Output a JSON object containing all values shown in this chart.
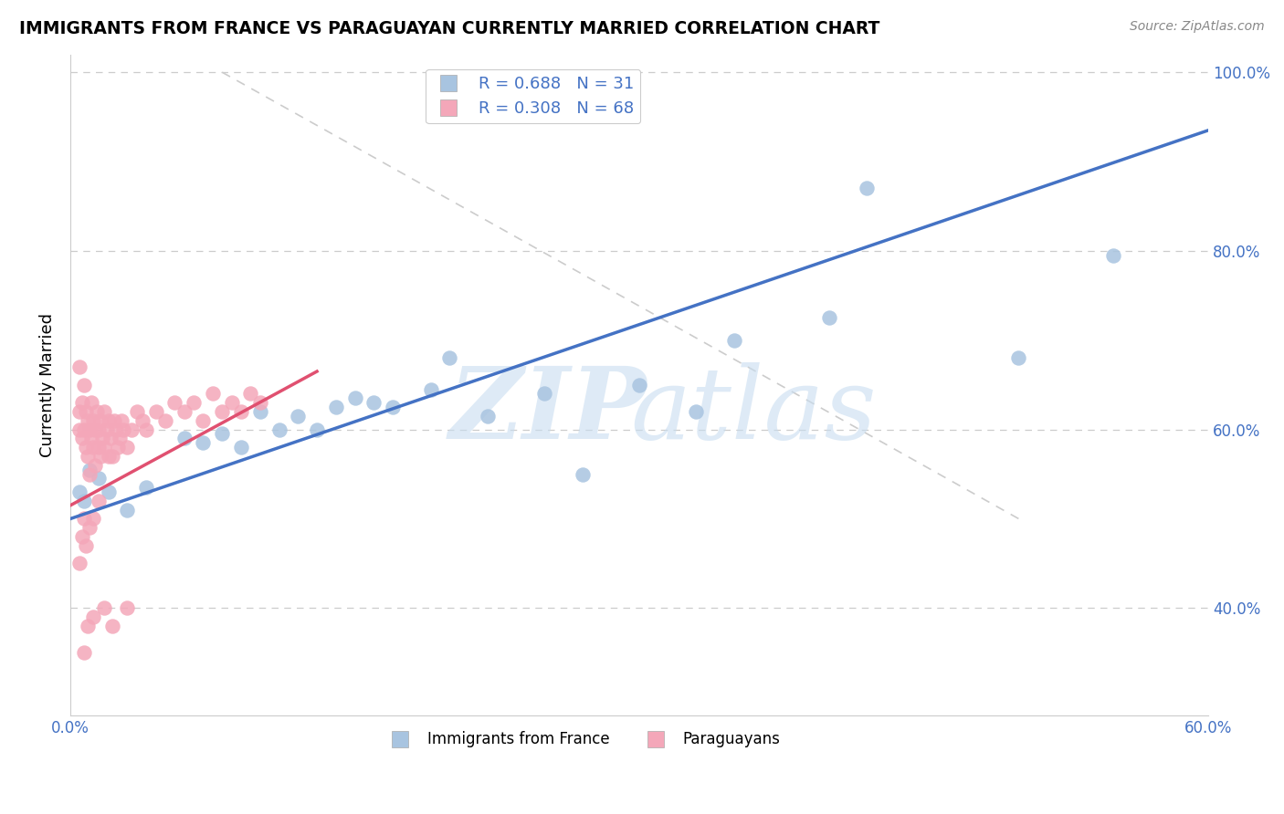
{
  "title": "IMMIGRANTS FROM FRANCE VS PARAGUAYAN CURRENTLY MARRIED CORRELATION CHART",
  "source": "Source: ZipAtlas.com",
  "ylabel": "Currently Married",
  "xlim": [
    0.0,
    0.6
  ],
  "ylim": [
    0.28,
    1.02
  ],
  "color_blue": "#a8c4e0",
  "color_pink": "#f4a7b9",
  "color_blue_line": "#4472c4",
  "color_pink_line": "#e05070",
  "color_legend_text": "#4472c4",
  "legend_r1": "R = 0.688",
  "legend_n1": "N = 31",
  "legend_r2": "R = 0.308",
  "legend_n2": "N = 68",
  "blue_line_x": [
    0.0,
    0.6
  ],
  "blue_line_y": [
    0.5,
    0.935
  ],
  "pink_line_x": [
    0.0,
    0.13
  ],
  "pink_line_y": [
    0.515,
    0.665
  ],
  "diag_line_x": [
    0.08,
    0.5
  ],
  "diag_line_y": [
    1.0,
    0.5
  ],
  "blue_x": [
    0.005,
    0.007,
    0.01,
    0.015,
    0.02,
    0.03,
    0.04,
    0.06,
    0.07,
    0.08,
    0.09,
    0.1,
    0.11,
    0.12,
    0.13,
    0.14,
    0.15,
    0.16,
    0.17,
    0.19,
    0.2,
    0.22,
    0.25,
    0.27,
    0.3,
    0.33,
    0.35,
    0.4,
    0.42,
    0.5,
    0.55
  ],
  "blue_y": [
    0.53,
    0.52,
    0.555,
    0.545,
    0.53,
    0.51,
    0.535,
    0.59,
    0.585,
    0.595,
    0.58,
    0.62,
    0.6,
    0.615,
    0.6,
    0.625,
    0.635,
    0.63,
    0.625,
    0.645,
    0.68,
    0.615,
    0.64,
    0.55,
    0.65,
    0.62,
    0.7,
    0.725,
    0.87,
    0.68,
    0.795
  ],
  "pink_x": [
    0.005,
    0.005,
    0.005,
    0.006,
    0.006,
    0.007,
    0.007,
    0.008,
    0.008,
    0.009,
    0.009,
    0.01,
    0.01,
    0.011,
    0.011,
    0.012,
    0.012,
    0.013,
    0.013,
    0.014,
    0.015,
    0.015,
    0.016,
    0.016,
    0.017,
    0.018,
    0.018,
    0.019,
    0.02,
    0.02,
    0.021,
    0.022,
    0.023,
    0.024,
    0.025,
    0.026,
    0.027,
    0.028,
    0.03,
    0.032,
    0.035,
    0.038,
    0.04,
    0.045,
    0.05,
    0.055,
    0.06,
    0.065,
    0.07,
    0.075,
    0.08,
    0.085,
    0.09,
    0.095,
    0.1,
    0.005,
    0.006,
    0.007,
    0.008,
    0.01,
    0.012,
    0.015,
    0.007,
    0.009,
    0.012,
    0.018,
    0.022,
    0.03
  ],
  "pink_y": [
    0.62,
    0.67,
    0.6,
    0.59,
    0.63,
    0.6,
    0.65,
    0.62,
    0.58,
    0.57,
    0.61,
    0.6,
    0.55,
    0.59,
    0.63,
    0.58,
    0.61,
    0.6,
    0.56,
    0.62,
    0.6,
    0.58,
    0.61,
    0.57,
    0.59,
    0.62,
    0.58,
    0.6,
    0.57,
    0.61,
    0.59,
    0.57,
    0.61,
    0.6,
    0.58,
    0.59,
    0.61,
    0.6,
    0.58,
    0.6,
    0.62,
    0.61,
    0.6,
    0.62,
    0.61,
    0.63,
    0.62,
    0.63,
    0.61,
    0.64,
    0.62,
    0.63,
    0.62,
    0.64,
    0.63,
    0.45,
    0.48,
    0.5,
    0.47,
    0.49,
    0.5,
    0.52,
    0.35,
    0.38,
    0.39,
    0.4,
    0.38,
    0.4
  ]
}
